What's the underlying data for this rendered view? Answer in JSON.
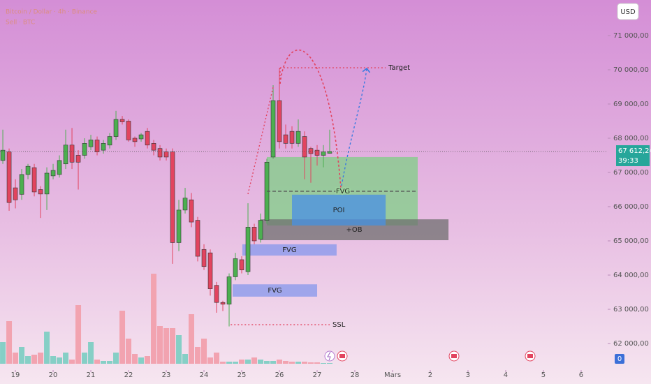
{
  "chart_data": {
    "type": "candlestick",
    "title": "Bitcoin / Dollar · 4h · Binance",
    "subtitle": "Sell · BTC",
    "currency": "USD",
    "x": [
      -8,
      -4,
      0,
      4,
      8,
      12,
      16,
      20,
      24,
      28,
      32,
      36,
      40,
      44,
      48,
      52,
      56,
      60,
      64,
      68,
      72,
      76,
      80,
      84,
      88,
      92,
      96,
      100,
      104,
      108,
      112,
      116,
      120,
      124,
      128,
      132,
      136,
      140,
      144,
      148,
      152,
      156,
      160,
      164,
      168,
      172,
      176,
      180,
      184,
      188,
      192,
      196,
      200
    ],
    "open": [
      67350,
      67600,
      66550,
      66360,
      66940,
      67140,
      66500,
      66370,
      66900,
      66940,
      67250,
      67800,
      67500,
      67500,
      67750,
      67950,
      67650,
      67800,
      68050,
      68550,
      68500,
      68000,
      67980,
      68200,
      67850,
      67700,
      67600,
      67600,
      64950,
      65900,
      66200,
      65600,
      64750,
      64650,
      63700,
      63200,
      63150,
      63950,
      64450,
      64100,
      65400,
      65050,
      65600,
      67450,
      69100,
      68100,
      68200,
      67850,
      68050,
      67700,
      67650,
      67500,
      67560
    ],
    "high": [
      68250,
      67700,
      66800,
      67100,
      67250,
      67250,
      66600,
      67150,
      67250,
      67500,
      68250,
      68300,
      67650,
      68000,
      68100,
      68050,
      67950,
      68150,
      68800,
      68650,
      68550,
      68050,
      68150,
      68300,
      67950,
      67800,
      67700,
      67700,
      66200,
      66550,
      66400,
      65700,
      64900,
      64750,
      63800,
      63250,
      64050,
      64650,
      64550,
      66100,
      65500,
      65800,
      67400,
      69550,
      70050,
      68400,
      68350,
      68550,
      68200,
      67750,
      67800,
      67800,
      68250
    ],
    "low": [
      67250,
      65880,
      65950,
      66200,
      66800,
      66300,
      65670,
      65900,
      66800,
      66850,
      67100,
      67100,
      66500,
      67400,
      67650,
      67500,
      67550,
      67700,
      67950,
      68400,
      67900,
      67750,
      67900,
      67700,
      67500,
      67350,
      67350,
      64330,
      64700,
      65800,
      65400,
      64400,
      64150,
      63400,
      62900,
      62950,
      62500,
      63850,
      64050,
      64000,
      64900,
      64950,
      65500,
      67400,
      67700,
      67700,
      67700,
      67750,
      66800,
      66700,
      67200,
      67150,
      67550
    ],
    "close": [
      67650,
      66120,
      66200,
      66940,
      67180,
      66430,
      66370,
      66980,
      67060,
      67350,
      67800,
      67300,
      67300,
      67850,
      67950,
      67600,
      67850,
      68050,
      68550,
      68480,
      67950,
      67900,
      68100,
      67800,
      67650,
      67450,
      67450,
      64950,
      65900,
      66250,
      65550,
      64550,
      64250,
      63600,
      63200,
      63150,
      63950,
      64480,
      64150,
      65400,
      65000,
      65600,
      67300,
      69100,
      67900,
      67850,
      67850,
      68200,
      67450,
      67550,
      67500,
      67600,
      67612.24
    ],
    "volume": [
      31,
      61,
      16,
      24,
      11,
      13,
      16,
      46,
      11,
      9,
      16,
      6,
      84,
      16,
      31,
      6,
      4,
      4,
      16,
      76,
      36,
      14,
      9,
      11,
      129,
      54,
      51,
      51,
      41,
      14,
      71,
      24,
      36,
      9,
      16,
      3,
      3,
      3,
      6,
      6,
      9,
      6,
      4,
      4,
      6,
      4,
      3,
      3,
      3,
      2,
      2,
      1,
      1
    ],
    "volume_ticks": [
      0
    ],
    "up_color": "#4caf50",
    "down_color": "#e2445f",
    "volume_up_color": "#86cfc6",
    "volume_down_color": "#f2a3b0",
    "xlim": [
      -9.8,
      376.9
    ],
    "ylim": [
      61225,
      72040
    ],
    "xticks": [
      {
        "value": 0,
        "label": "19"
      },
      {
        "value": 24,
        "label": "20"
      },
      {
        "value": 48,
        "label": "21"
      },
      {
        "value": 72,
        "label": "22"
      },
      {
        "value": 96,
        "label": "23"
      },
      {
        "value": 120,
        "label": "24"
      },
      {
        "value": 144,
        "label": "25"
      },
      {
        "value": 168,
        "label": "26"
      },
      {
        "value": 192,
        "label": "27"
      },
      {
        "value": 216,
        "label": "28"
      },
      {
        "value": 240,
        "label": "Mars"
      },
      {
        "value": 264,
        "label": "2"
      },
      {
        "value": 288,
        "label": "3"
      },
      {
        "value": 312,
        "label": "4"
      },
      {
        "value": 336,
        "label": "5"
      },
      {
        "value": 360,
        "label": "6"
      }
    ],
    "yticks": [
      {
        "value": 62000,
        "label": "62 000,00"
      },
      {
        "value": 63000,
        "label": "63 000,00"
      },
      {
        "value": 64000,
        "label": "64 000,00"
      },
      {
        "value": 65000,
        "label": "65 000,00"
      },
      {
        "value": 66000,
        "label": "66 000,00"
      },
      {
        "value": 67000,
        "label": "67 000,00"
      },
      {
        "value": 68000,
        "label": "68 000,00"
      },
      {
        "value": 69000,
        "label": "69 000,00"
      },
      {
        "value": 70000,
        "label": "70 000,00"
      },
      {
        "value": 71000,
        "label": "71 000,00"
      }
    ],
    "last": {
      "value": 67612.24,
      "label": "67 612,24",
      "countdown": "39:33",
      "color": "#26a69a"
    },
    "zones": [
      {
        "x": [
          160,
          256
        ],
        "y": [
          65450,
          67450
        ],
        "color": "#7fcf86"
      },
      {
        "label": "+OB",
        "x": [
          155.6,
          275.6
        ],
        "y": [
          65020,
          65630
        ],
        "color": "#6f6f6f"
      },
      {
        "label": "POI",
        "x": [
          176,
          235.6
        ],
        "y": [
          65450,
          66350
        ],
        "color": "#4a8fe6"
      },
      {
        "label": "FVG",
        "x": [
          144.4,
          204.4
        ],
        "y": [
          64570,
          64900
        ],
        "color": "#8497ec"
      },
      {
        "label": "FVG",
        "x": [
          138.2,
          192
        ],
        "y": [
          63370,
          63730
        ],
        "color": "#8497ec"
      }
    ],
    "levels": [
      {
        "label": "FVG",
        "x": [
          160,
          256
        ],
        "y": 66450,
        "color": "#555555"
      },
      {
        "label": "Target",
        "x": [
          168.4,
          235.6
        ],
        "y": 70060,
        "color": "#e2445f"
      },
      {
        "label": "SSL",
        "x": [
          137,
          200
        ],
        "y": 62550,
        "color": "#e2445f"
      }
    ]
  }
}
